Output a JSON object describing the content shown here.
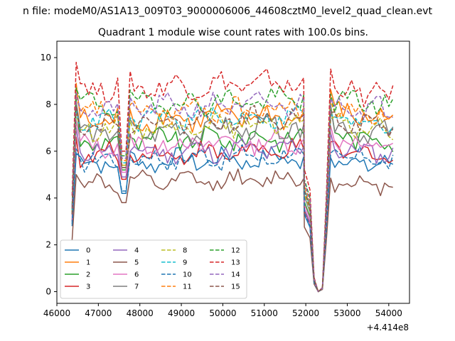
{
  "chart_data": {
    "type": "line",
    "title": "n file: modeM0/AS1A13_009T03_9000006006_44608cztM0_level2_quad_clean.evt",
    "subtitle": "Quadrant 1 module wise count rates with 100.0s bins.",
    "xlabel": "",
    "ylabel": "",
    "x_offset_label": "+4.414e8",
    "xlim": [
      46000,
      54500
    ],
    "ylim": [
      -0.5,
      10.7
    ],
    "xticks": [
      46000,
      47000,
      48000,
      49000,
      50000,
      51000,
      52000,
      53000,
      54000
    ],
    "xtick_labels": [
      "46000",
      "47000",
      "48000",
      "49000",
      "50000",
      "51000",
      "52000",
      "53000",
      "54000"
    ],
    "yticks": [
      0,
      2,
      4,
      6,
      8,
      10
    ],
    "ytick_labels": [
      "0",
      "2",
      "4",
      "6",
      "8",
      "10"
    ],
    "grid": false,
    "legend_position": "lower-left",
    "legend_columns": 4,
    "gap_points": [
      {
        "x": 52100,
        "frac": 0.5
      },
      {
        "x": 52200,
        "frac": 0.07
      },
      {
        "x": 52300,
        "frac": 0.0
      },
      {
        "x": 52400,
        "frac": 0.02
      }
    ],
    "segments": [
      [
        46366,
        52000
      ],
      [
        52500,
        54166
      ]
    ],
    "series": [
      {
        "name": "0",
        "color": "#1f77b4",
        "dash": "solid",
        "start": 2.8,
        "rise": 5.9,
        "level": 5.5,
        "level2": 5.6,
        "dip": 4.2,
        "amp": 0.35,
        "end": 2.2
      },
      {
        "name": "1",
        "color": "#ff7f0e",
        "dash": "solid",
        "start": 3.5,
        "rise": 8.9,
        "level": 7.3,
        "level2": 7.6,
        "dip": 5.4,
        "amp": 0.45,
        "end": 2.6
      },
      {
        "name": "2",
        "color": "#2ca02c",
        "dash": "solid",
        "start": 3.3,
        "rise": 8.2,
        "level": 6.4,
        "level2": 6.7,
        "dip": 5.2,
        "amp": 0.4,
        "end": 2.4
      },
      {
        "name": "3",
        "color": "#d62728",
        "dash": "solid",
        "start": 3.0,
        "rise": 6.6,
        "level": 5.8,
        "level2": 6.0,
        "dip": 4.8,
        "amp": 0.35,
        "end": 2.2
      },
      {
        "name": "4",
        "color": "#9467bd",
        "dash": "solid",
        "start": 3.0,
        "rise": 7.0,
        "level": 5.9,
        "level2": 6.1,
        "dip": 4.9,
        "amp": 0.35,
        "end": 2.3
      },
      {
        "name": "5",
        "color": "#8c564b",
        "dash": "solid",
        "start": 2.2,
        "rise": 5.0,
        "level": 4.6,
        "level2": 4.7,
        "dip": 3.8,
        "amp": 0.3,
        "end": 1.5
      },
      {
        "name": "6",
        "color": "#e377c2",
        "dash": "solid",
        "start": 3.2,
        "rise": 7.3,
        "level": 6.2,
        "level2": 6.4,
        "dip": 5.1,
        "amp": 0.35,
        "end": 2.4
      },
      {
        "name": "7",
        "color": "#7f7f7f",
        "dash": "solid",
        "start": 3.4,
        "rise": 8.1,
        "level": 6.8,
        "level2": 7.0,
        "dip": 5.3,
        "amp": 0.4,
        "end": 2.5
      },
      {
        "name": "8",
        "color": "#bcbd22",
        "dash": "dashed",
        "start": 3.4,
        "rise": 7.6,
        "level": 7.0,
        "level2": 7.1,
        "dip": 5.4,
        "amp": 0.35,
        "end": 2.5
      },
      {
        "name": "9",
        "color": "#17becf",
        "dash": "dashed",
        "start": 3.5,
        "rise": 7.8,
        "level": 7.3,
        "level2": 7.4,
        "dip": 5.5,
        "amp": 0.35,
        "end": 2.6
      },
      {
        "name": "10",
        "color": "#1f77b4",
        "dash": "dashed",
        "start": 2.9,
        "rise": 6.1,
        "level": 5.6,
        "level2": 5.8,
        "dip": 4.3,
        "amp": 0.35,
        "end": 2.2
      },
      {
        "name": "11",
        "color": "#ff7f0e",
        "dash": "dashed",
        "start": 3.6,
        "rise": 8.4,
        "level": 7.6,
        "level2": 7.8,
        "dip": 5.6,
        "amp": 0.4,
        "end": 2.7
      },
      {
        "name": "12",
        "color": "#2ca02c",
        "dash": "dashed",
        "start": 3.7,
        "rise": 8.7,
        "level": 8.0,
        "level2": 8.2,
        "dip": 5.8,
        "amp": 0.4,
        "end": 2.8
      },
      {
        "name": "13",
        "color": "#d62728",
        "dash": "dashed",
        "start": 4.1,
        "rise": 9.8,
        "level": 8.7,
        "level2": 8.6,
        "dip": 6.0,
        "amp": 0.45,
        "end": 3.0
      },
      {
        "name": "14",
        "color": "#9467bd",
        "dash": "dashed",
        "start": 3.6,
        "rise": 8.5,
        "level": 7.8,
        "level2": 8.0,
        "dip": 5.7,
        "amp": 0.4,
        "end": 2.7
      },
      {
        "name": "15",
        "color": "#8c564b",
        "dash": "dashed",
        "start": 3.3,
        "rise": 7.9,
        "level": 7.2,
        "level2": 7.3,
        "dip": 5.3,
        "amp": 0.35,
        "end": 2.4
      }
    ]
  }
}
